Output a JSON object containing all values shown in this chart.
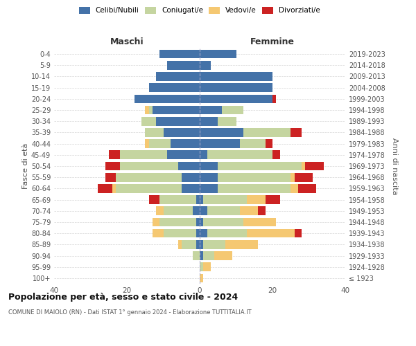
{
  "age_groups": [
    "100+",
    "95-99",
    "90-94",
    "85-89",
    "80-84",
    "75-79",
    "70-74",
    "65-69",
    "60-64",
    "55-59",
    "50-54",
    "45-49",
    "40-44",
    "35-39",
    "30-34",
    "25-29",
    "20-24",
    "15-19",
    "10-14",
    "5-9",
    "0-4"
  ],
  "birth_years": [
    "≤ 1923",
    "1924-1928",
    "1929-1933",
    "1934-1938",
    "1939-1943",
    "1944-1948",
    "1949-1953",
    "1954-1958",
    "1959-1963",
    "1964-1968",
    "1969-1973",
    "1974-1978",
    "1979-1983",
    "1984-1988",
    "1989-1993",
    "1994-1998",
    "1999-2003",
    "2004-2008",
    "2009-2013",
    "2014-2018",
    "2019-2023"
  ],
  "colors": {
    "celibi": "#4472a8",
    "coniugati": "#c5d5a0",
    "vedovi": "#f5c872",
    "divorziati": "#cc2222"
  },
  "legend_labels": [
    "Celibi/Nubili",
    "Coniugati/e",
    "Vedovi/e",
    "Divorziati/e"
  ],
  "maschi": {
    "celibi": [
      0,
      0,
      0,
      1,
      1,
      1,
      2,
      1,
      5,
      5,
      6,
      9,
      8,
      10,
      12,
      13,
      18,
      14,
      12,
      9,
      11
    ],
    "coniugati": [
      0,
      0,
      2,
      4,
      9,
      10,
      8,
      10,
      18,
      18,
      16,
      13,
      6,
      5,
      4,
      1,
      0,
      0,
      0,
      0,
      0
    ],
    "vedovi": [
      0,
      0,
      0,
      1,
      3,
      2,
      2,
      0,
      1,
      0,
      0,
      0,
      1,
      0,
      0,
      1,
      0,
      0,
      0,
      0,
      0
    ],
    "divorziati": [
      0,
      0,
      0,
      0,
      0,
      0,
      0,
      3,
      4,
      3,
      4,
      3,
      0,
      0,
      0,
      0,
      0,
      0,
      0,
      0,
      0
    ]
  },
  "femmine": {
    "celibi": [
      0,
      0,
      1,
      1,
      2,
      1,
      2,
      1,
      5,
      5,
      5,
      2,
      11,
      12,
      5,
      6,
      20,
      20,
      20,
      3,
      10
    ],
    "coniugati": [
      0,
      1,
      3,
      6,
      11,
      11,
      9,
      12,
      20,
      20,
      23,
      18,
      7,
      13,
      5,
      6,
      0,
      0,
      0,
      0,
      0
    ],
    "vedovi": [
      1,
      2,
      5,
      9,
      13,
      9,
      5,
      5,
      2,
      1,
      1,
      0,
      0,
      0,
      0,
      0,
      0,
      0,
      0,
      0,
      0
    ],
    "divorziati": [
      0,
      0,
      0,
      0,
      2,
      0,
      2,
      4,
      5,
      5,
      5,
      2,
      2,
      3,
      0,
      0,
      1,
      0,
      0,
      0,
      0
    ]
  },
  "title": "Popolazione per età, sesso e stato civile - 2024",
  "subtitle": "COMUNE DI MAIOLO (RN) - Dati ISTAT 1° gennaio 2024 - Elaborazione TUTTITALIA.IT",
  "xlabel_left": "Maschi",
  "xlabel_right": "Femmine",
  "ylabel_left": "Fasce di età",
  "ylabel_right": "Anni di nascita",
  "xlim": 40,
  "bg_color": "#ffffff",
  "grid_color": "#cccccc"
}
